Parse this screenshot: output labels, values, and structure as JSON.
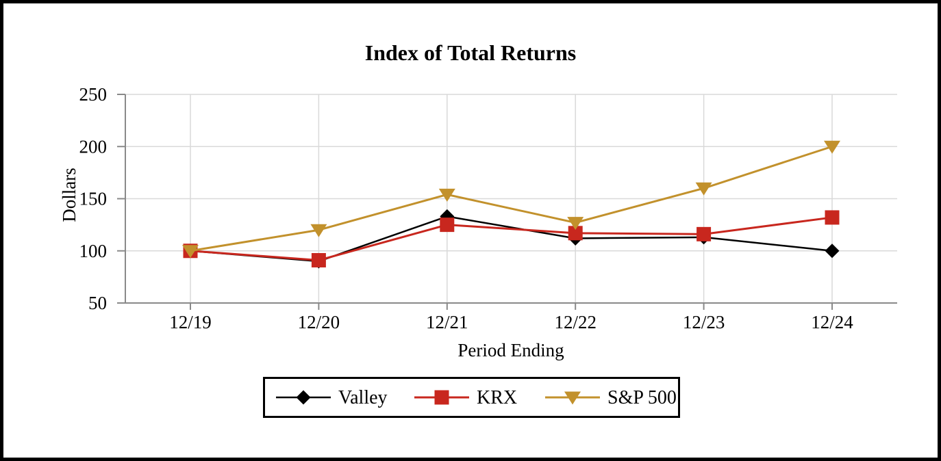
{
  "chart_data": {
    "type": "line",
    "title": "Index of Total Returns",
    "xlabel": "Period Ending",
    "ylabel": "Dollars",
    "categories": [
      "12/19",
      "12/20",
      "12/21",
      "12/22",
      "12/23",
      "12/24"
    ],
    "series": [
      {
        "name": "Valley",
        "marker": "diamond",
        "color": "#000000",
        "line_width": 2.5,
        "values": [
          100,
          90,
          133,
          112,
          113,
          100
        ]
      },
      {
        "name": "KRX",
        "marker": "square",
        "color": "#C8271E",
        "line_width": 3,
        "values": [
          100,
          91,
          125,
          117,
          116,
          132
        ]
      },
      {
        "name": "S&P 500",
        "marker": "triangle-down",
        "color": "#C2912C",
        "line_width": 3,
        "values": [
          100,
          120,
          154,
          127,
          160,
          200
        ]
      }
    ],
    "ylim": [
      50,
      250
    ],
    "yticks": [
      50,
      100,
      150,
      200,
      250
    ],
    "grid": true,
    "legend_position": "bottom",
    "colors": {
      "gridline": "#D9D9D9",
      "axis": "#898989",
      "text": "#000000",
      "background": "#FFFFFF",
      "page_border": "#000000"
    }
  }
}
